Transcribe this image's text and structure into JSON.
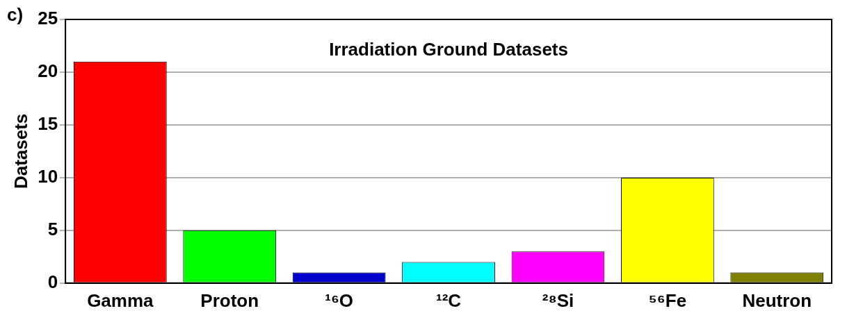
{
  "chart_data": {
    "type": "bar",
    "title": "Irradiation Ground Datasets",
    "ylabel": "Datasets",
    "annotations": [
      "c)"
    ],
    "categories": [
      "Gamma",
      "Proton",
      "¹⁶O",
      "¹²C",
      "²⁸Si",
      "⁵⁶Fe",
      "Neutron"
    ],
    "values": [
      21,
      5,
      1,
      2,
      3,
      10,
      1
    ],
    "colors": [
      "#ff0000",
      "#00ff00",
      "#0000cc",
      "#00ffff",
      "#ff00ff",
      "#ffff00",
      "#808000"
    ],
    "ylim": [
      0,
      25
    ],
    "yticks": [
      0,
      5,
      10,
      15,
      20,
      25
    ],
    "grid": "y",
    "legend": false
  }
}
